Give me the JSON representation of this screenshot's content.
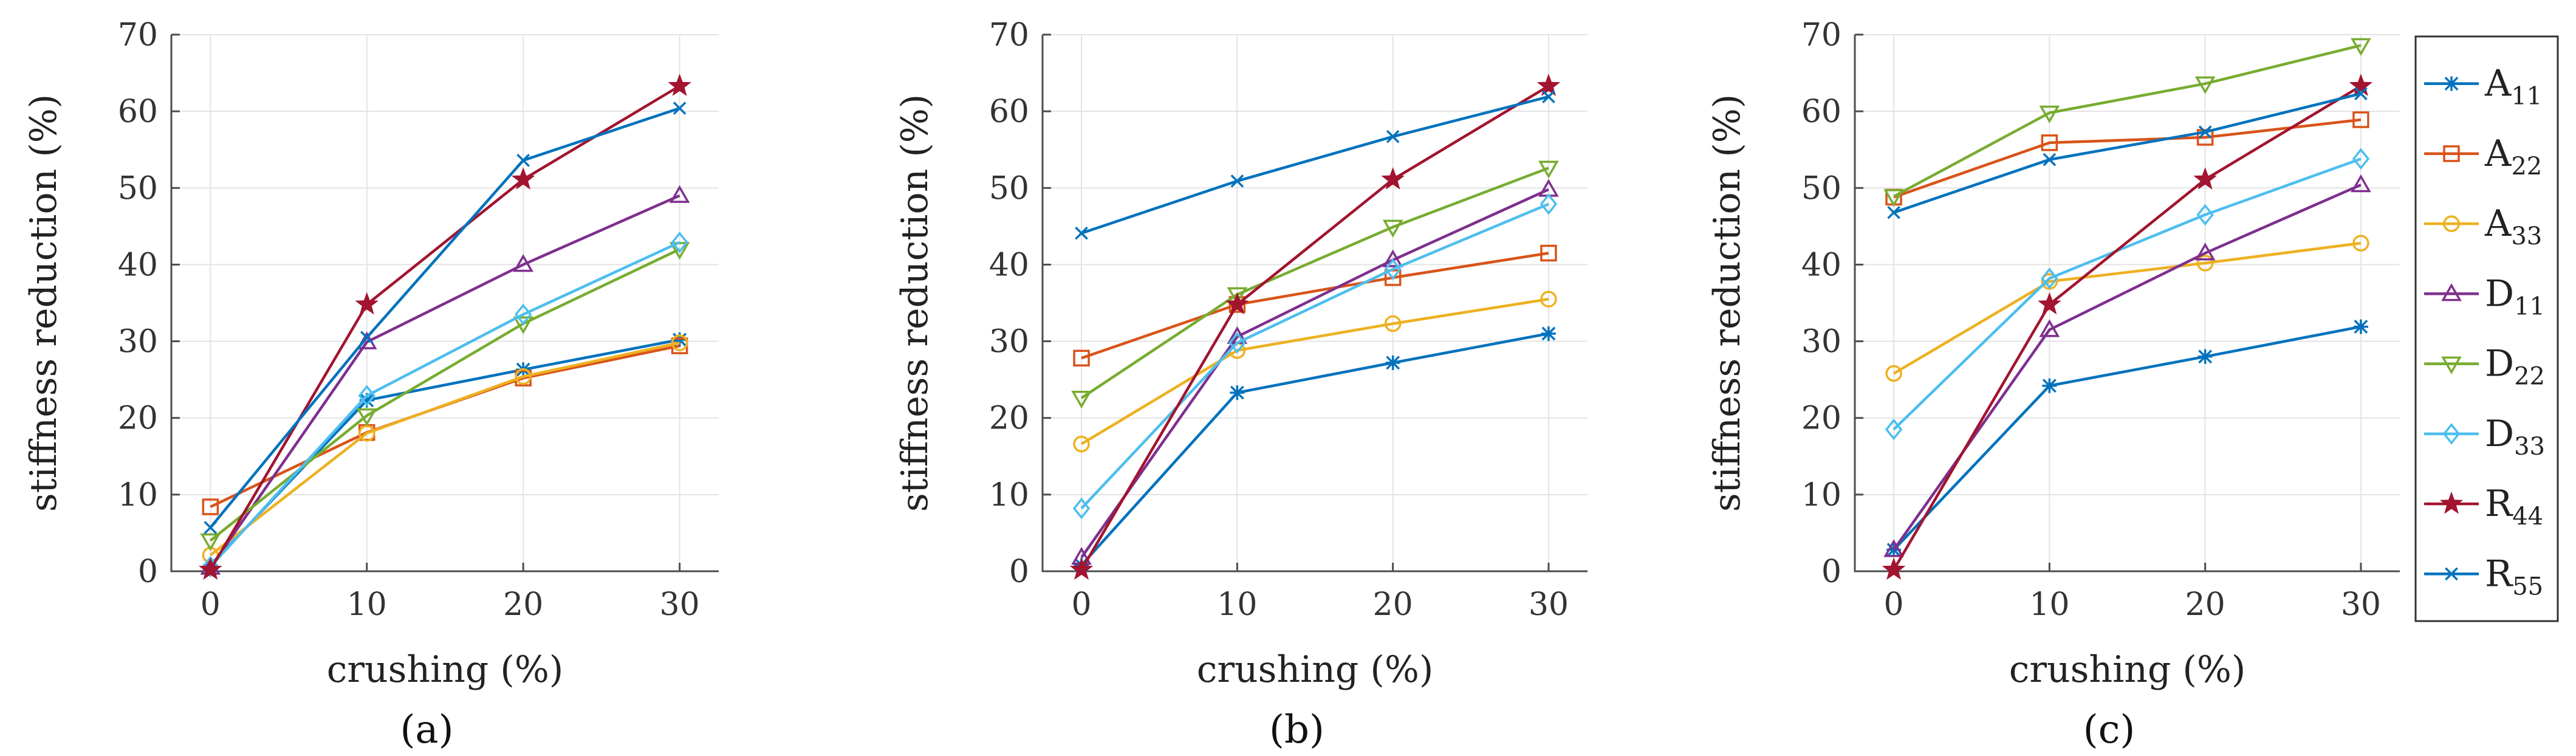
{
  "chart_data": [
    {
      "type": "line",
      "panel_label": "(a)",
      "xlabel": "crushing (%)",
      "ylabel": "stiffness reduction (%)",
      "x": [
        0,
        10,
        20,
        30
      ],
      "xlim": [
        -2.5,
        32.5
      ],
      "ylim": [
        0,
        70
      ],
      "xticks": [
        0,
        10,
        20,
        30
      ],
      "yticks": [
        0,
        10,
        20,
        30,
        40,
        50,
        60,
        70
      ],
      "grid": true,
      "series": [
        {
          "name": "A11",
          "values": [
            0.8,
            22.3,
            26.3,
            30.2
          ]
        },
        {
          "name": "A22",
          "values": [
            8.4,
            18.1,
            25.2,
            29.4
          ]
        },
        {
          "name": "A33",
          "values": [
            2.1,
            18.0,
            25.4,
            29.8
          ]
        },
        {
          "name": "D11",
          "values": [
            0.5,
            29.9,
            40.0,
            49.0
          ]
        },
        {
          "name": "D22",
          "values": [
            4.0,
            20.3,
            32.3,
            42.0
          ]
        },
        {
          "name": "D33",
          "values": [
            0.6,
            22.9,
            33.5,
            42.9
          ]
        },
        {
          "name": "R44",
          "values": [
            0.2,
            34.8,
            51.1,
            63.3
          ]
        },
        {
          "name": "R55",
          "values": [
            5.7,
            30.5,
            53.6,
            60.4
          ]
        }
      ]
    },
    {
      "type": "line",
      "panel_label": "(b)",
      "xlabel": "crushing (%)",
      "ylabel": "stiffness reduction (%)",
      "x": [
        0,
        10,
        20,
        30
      ],
      "xlim": [
        -2.5,
        32.5
      ],
      "ylim": [
        0,
        70
      ],
      "xticks": [
        0,
        10,
        20,
        30
      ],
      "yticks": [
        0,
        10,
        20,
        30,
        40,
        50,
        60,
        70
      ],
      "grid": true,
      "series": [
        {
          "name": "A11",
          "values": [
            0.8,
            23.3,
            27.2,
            31.0
          ]
        },
        {
          "name": "A22",
          "values": [
            27.8,
            34.8,
            38.3,
            41.5
          ]
        },
        {
          "name": "A33",
          "values": [
            16.6,
            28.8,
            32.3,
            35.5
          ]
        },
        {
          "name": "D11",
          "values": [
            1.8,
            30.6,
            40.6,
            49.8
          ]
        },
        {
          "name": "D22",
          "values": [
            22.6,
            36.1,
            44.9,
            52.6
          ]
        },
        {
          "name": "D33",
          "values": [
            8.2,
            29.8,
            39.4,
            47.9
          ]
        },
        {
          "name": "R44",
          "values": [
            0.2,
            34.8,
            51.1,
            63.3
          ]
        },
        {
          "name": "R55",
          "values": [
            44.1,
            50.9,
            56.7,
            61.9
          ]
        }
      ]
    },
    {
      "type": "line",
      "panel_label": "(c)",
      "xlabel": "crushing (%)",
      "ylabel": "stiffness reduction (%)",
      "x": [
        0,
        10,
        20,
        30
      ],
      "xlim": [
        -2.5,
        32.5
      ],
      "ylim": [
        0,
        70
      ],
      "xticks": [
        0,
        10,
        20,
        30
      ],
      "yticks": [
        0,
        10,
        20,
        30,
        40,
        50,
        60,
        70
      ],
      "grid": true,
      "series": [
        {
          "name": "A11",
          "values": [
            2.8,
            24.2,
            28.0,
            31.9
          ]
        },
        {
          "name": "A22",
          "values": [
            48.8,
            55.9,
            56.6,
            58.9
          ]
        },
        {
          "name": "A33",
          "values": [
            25.8,
            37.8,
            40.2,
            42.8
          ]
        },
        {
          "name": "D11",
          "values": [
            2.8,
            31.5,
            41.5,
            50.4
          ]
        },
        {
          "name": "D22",
          "values": [
            48.9,
            59.8,
            63.6,
            68.6
          ]
        },
        {
          "name": "D33",
          "values": [
            18.5,
            38.2,
            46.5,
            53.8
          ]
        },
        {
          "name": "R44",
          "values": [
            0.2,
            34.8,
            51.1,
            63.3
          ]
        },
        {
          "name": "R55",
          "values": [
            46.8,
            53.7,
            57.3,
            62.3
          ]
        }
      ]
    }
  ],
  "legend": {
    "position": "right",
    "entries": [
      {
        "name": "A11",
        "base": "A",
        "sub": "11",
        "color": "#0072BD",
        "marker": "asterisk"
      },
      {
        "name": "A22",
        "base": "A",
        "sub": "22",
        "color": "#D95319",
        "marker": "square"
      },
      {
        "name": "A33",
        "base": "A",
        "sub": "33",
        "color": "#EDB120",
        "marker": "circle"
      },
      {
        "name": "D11",
        "base": "D",
        "sub": "11",
        "color": "#7E2F8E",
        "marker": "triangle-up"
      },
      {
        "name": "D22",
        "base": "D",
        "sub": "22",
        "color": "#77AC30",
        "marker": "triangle-down"
      },
      {
        "name": "D33",
        "base": "D",
        "sub": "33",
        "color": "#4DBEEE",
        "marker": "diamond"
      },
      {
        "name": "R44",
        "base": "R",
        "sub": "44",
        "color": "#A2142F",
        "marker": "star"
      },
      {
        "name": "R55",
        "base": "R",
        "sub": "55",
        "color": "#0072BD",
        "marker": "cross"
      }
    ]
  }
}
